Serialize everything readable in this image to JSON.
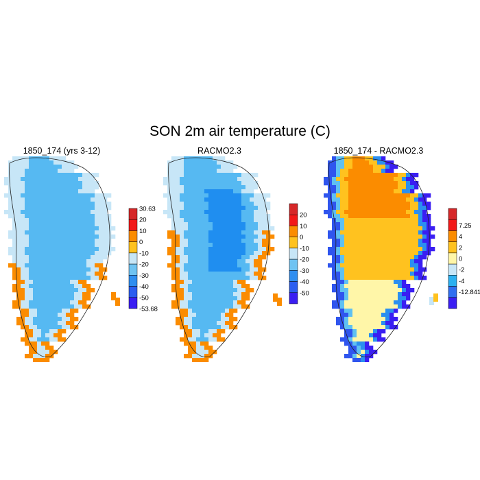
{
  "figure": {
    "title": "SON 2m air temperature (C)"
  },
  "chart_data": [
    {
      "type": "heatmap",
      "title": "1850_174 (yrs 3-12)",
      "field": "model",
      "colorbar": {
        "levels": [
          "30.63",
          "20",
          "10",
          "0",
          "-10",
          "-20",
          "-30",
          "-40",
          "-50",
          "-53.68"
        ],
        "colors": [
          "#d62728",
          "#f21818",
          "#fb8c00",
          "#ffc21f",
          "#c7e6f7",
          "#6fc3f2",
          "#2f8ef0",
          "#2b5ef0",
          "#3a1ef2"
        ]
      }
    },
    {
      "type": "heatmap",
      "title": "RACMO2.3",
      "field": "obs",
      "colorbar": {
        "levels": [
          "20",
          "10",
          "0",
          "-10",
          "-20",
          "-30",
          "-40",
          "-50"
        ],
        "colors": [
          "#d62728",
          "#f21818",
          "#fb8c00",
          "#ffc21f",
          "#c7e6f7",
          "#6fc3f2",
          "#2f8ef0",
          "#2b5ef0",
          "#3a1ef2"
        ]
      }
    },
    {
      "type": "heatmap",
      "title": "1850_174 - RACMO2.3",
      "field": "diff",
      "colorbar": {
        "levels": [
          "7.25",
          "4",
          "2",
          "0",
          "-2",
          "-4",
          "-12.841"
        ],
        "colors": [
          "#d62728",
          "#f21818",
          "#fb8c00",
          "#ffc21f",
          "#fff6a8",
          "#c7e6f7",
          "#2bb0f0",
          "#2f6ef0",
          "#3a1ef2"
        ]
      }
    }
  ]
}
